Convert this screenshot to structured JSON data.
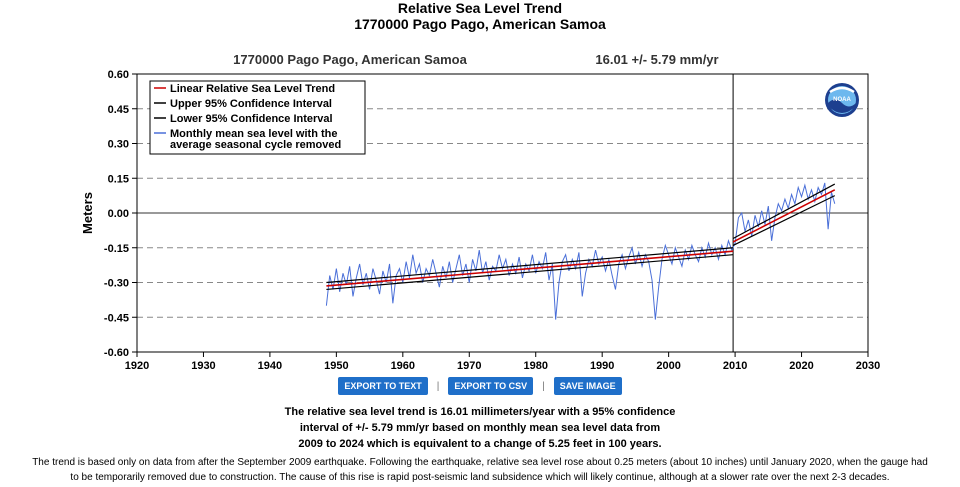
{
  "title": "Relative Sea Level Trend",
  "subtitle": "1770000 Pago Pago, American Samoa",
  "chart_header": {
    "station": "1770000 Pago Pago, American Samoa",
    "trend": "16.01 +/-  5.79 mm/yr"
  },
  "buttons": {
    "export_text": "EXPORT TO TEXT",
    "export_csv": "EXPORT TO CSV",
    "save_image": "SAVE IMAGE"
  },
  "separator": "|",
  "summary": {
    "line1": "The relative sea level trend is 16.01 millimeters/year with a 95% confidence",
    "line2": "interval of +/- 5.79 mm/yr based on monthly mean sea level data from",
    "line3": "2009 to 2024 which is equivalent to a change of 5.25 feet in 100 years."
  },
  "note": {
    "line1": "The trend is based only on data from after the September 2009 earthquake. Following the earthquake, relative sea level rose about 0.25 meters (about 10 inches) until January 2020, when the gauge had",
    "line2": "to be temporarily removed due to construction. The cause of this rise is rapid post-seismic land subsidence which will likely continue, although at a slower rate over the next 2-3 decades."
  },
  "logo_text": "NOAA",
  "colors": {
    "trend": "#cc0000",
    "confidence": "#000000",
    "monthly": "#4a6fd8",
    "button": "#1f6fc9"
  },
  "chart_data": {
    "type": "line",
    "ylabel": "Meters",
    "xlim": [
      1920,
      2030
    ],
    "ylim": [
      -0.6,
      0.6
    ],
    "xticks": [
      "1920",
      "1930",
      "1940",
      "1950",
      "1960",
      "1970",
      "1980",
      "1990",
      "2000",
      "2010",
      "2020",
      "2030"
    ],
    "yticks": [
      "0.60",
      "0.45",
      "0.30",
      "0.15",
      "0.00",
      "-0.15",
      "-0.30",
      "-0.45",
      "-0.60"
    ],
    "dashed_gridlines_y": [
      0.45,
      0.3,
      0.15,
      -0.15,
      -0.3,
      -0.45
    ],
    "reference_line_y": 0.0,
    "vertical_line_x": 2009.7,
    "legend": [
      "Linear Relative Sea Level Trend",
      "Upper 95% Confidence Interval",
      "Lower 95% Confidence Interval",
      "Monthly mean sea level with the",
      "average seasonal cycle removed"
    ],
    "legend_placement": "top-left",
    "series": [
      {
        "name": "Linear Relative Sea Level Trend",
        "segments": [
          {
            "x": [
              1948.5,
              2009.7
            ],
            "y": [
              -0.315,
              -0.165
            ]
          },
          {
            "x": [
              2009.7,
              2025.0
            ],
            "y": [
              -0.125,
              0.1
            ]
          }
        ]
      },
      {
        "name": "Upper 95% Confidence Interval",
        "segments": [
          {
            "x": [
              1948.5,
              2009.7
            ],
            "y": [
              -0.3,
              -0.15
            ]
          },
          {
            "x": [
              2009.7,
              2025.0
            ],
            "y": [
              -0.11,
              0.125
            ]
          }
        ]
      },
      {
        "name": "Lower 95% Confidence Interval",
        "segments": [
          {
            "x": [
              1948.5,
              2009.7
            ],
            "y": [
              -0.33,
              -0.18
            ]
          },
          {
            "x": [
              2009.7,
              2025.0
            ],
            "y": [
              -0.14,
              0.075
            ]
          }
        ]
      },
      {
        "name": "Monthly mean sea level with the average seasonal cycle removed",
        "points": [
          [
            1948.5,
            -0.4
          ],
          [
            1949.0,
            -0.27
          ],
          [
            1949.5,
            -0.33
          ],
          [
            1950.0,
            -0.24
          ],
          [
            1950.5,
            -0.34
          ],
          [
            1951.0,
            -0.26
          ],
          [
            1951.5,
            -0.31
          ],
          [
            1952.0,
            -0.23
          ],
          [
            1952.5,
            -0.36
          ],
          [
            1953.0,
            -0.28
          ],
          [
            1953.5,
            -0.22
          ],
          [
            1954.0,
            -0.31
          ],
          [
            1954.5,
            -0.26
          ],
          [
            1955.0,
            -0.33
          ],
          [
            1955.5,
            -0.24
          ],
          [
            1956.0,
            -0.29
          ],
          [
            1956.5,
            -0.35
          ],
          [
            1957.0,
            -0.25
          ],
          [
            1957.5,
            -0.3
          ],
          [
            1958.0,
            -0.22
          ],
          [
            1958.5,
            -0.39
          ],
          [
            1959.0,
            -0.27
          ],
          [
            1959.5,
            -0.24
          ],
          [
            1960.0,
            -0.3
          ],
          [
            1960.5,
            -0.21
          ],
          [
            1961.0,
            -0.28
          ],
          [
            1961.5,
            -0.18
          ],
          [
            1962.0,
            -0.26
          ],
          [
            1962.5,
            -0.22
          ],
          [
            1963.0,
            -0.3
          ],
          [
            1963.5,
            -0.24
          ],
          [
            1964.0,
            -0.27
          ],
          [
            1964.5,
            -0.2
          ],
          [
            1965.0,
            -0.26
          ],
          [
            1965.5,
            -0.32
          ],
          [
            1966.0,
            -0.23
          ],
          [
            1966.5,
            -0.28
          ],
          [
            1967.0,
            -0.21
          ],
          [
            1967.5,
            -0.3
          ],
          [
            1968.0,
            -0.24
          ],
          [
            1968.5,
            -0.18
          ],
          [
            1969.0,
            -0.27
          ],
          [
            1969.5,
            -0.22
          ],
          [
            1970.0,
            -0.3
          ],
          [
            1970.5,
            -0.2
          ],
          [
            1971.0,
            -0.25
          ],
          [
            1971.5,
            -0.16
          ],
          [
            1972.0,
            -0.26
          ],
          [
            1972.5,
            -0.21
          ],
          [
            1973.0,
            -0.29
          ],
          [
            1973.5,
            -0.23
          ],
          [
            1974.0,
            -0.25
          ],
          [
            1974.5,
            -0.18
          ],
          [
            1975.0,
            -0.24
          ],
          [
            1975.5,
            -0.2
          ],
          [
            1976.0,
            -0.27
          ],
          [
            1976.5,
            -0.22
          ],
          [
            1977.0,
            -0.26
          ],
          [
            1977.5,
            -0.19
          ],
          [
            1978.0,
            -0.28
          ],
          [
            1978.5,
            -0.22
          ],
          [
            1979.0,
            -0.25
          ],
          [
            1979.5,
            -0.18
          ],
          [
            1980.0,
            -0.26
          ],
          [
            1980.5,
            -0.21
          ],
          [
            1981.0,
            -0.24
          ],
          [
            1981.5,
            -0.17
          ],
          [
            1982.0,
            -0.29
          ],
          [
            1982.5,
            -0.22
          ],
          [
            1983.0,
            -0.46
          ],
          [
            1983.5,
            -0.3
          ],
          [
            1984.0,
            -0.21
          ],
          [
            1984.5,
            -0.18
          ],
          [
            1985.0,
            -0.25
          ],
          [
            1985.5,
            -0.2
          ],
          [
            1986.0,
            -0.24
          ],
          [
            1986.5,
            -0.17
          ],
          [
            1987.0,
            -0.36
          ],
          [
            1987.5,
            -0.26
          ],
          [
            1988.0,
            -0.2
          ],
          [
            1988.5,
            -0.23
          ],
          [
            1989.0,
            -0.16
          ],
          [
            1989.5,
            -0.22
          ],
          [
            1990.0,
            -0.19
          ],
          [
            1990.5,
            -0.25
          ],
          [
            1991.0,
            -0.2
          ],
          [
            1991.5,
            -0.27
          ],
          [
            1992.0,
            -0.33
          ],
          [
            1992.5,
            -0.22
          ],
          [
            1993.0,
            -0.18
          ],
          [
            1993.5,
            -0.24
          ],
          [
            1994.0,
            -0.19
          ],
          [
            1994.5,
            -0.15
          ],
          [
            1995.0,
            -0.22
          ],
          [
            1995.5,
            -0.17
          ],
          [
            1996.0,
            -0.23
          ],
          [
            1996.5,
            -0.18
          ],
          [
            1997.0,
            -0.21
          ],
          [
            1997.5,
            -0.29
          ],
          [
            1998.0,
            -0.46
          ],
          [
            1998.5,
            -0.32
          ],
          [
            1999.0,
            -0.2
          ],
          [
            1999.5,
            -0.14
          ],
          [
            2000.0,
            -0.18
          ],
          [
            2000.5,
            -0.22
          ],
          [
            2001.0,
            -0.15
          ],
          [
            2001.5,
            -0.19
          ],
          [
            2002.0,
            -0.23
          ],
          [
            2002.5,
            -0.16
          ],
          [
            2003.0,
            -0.2
          ],
          [
            2003.5,
            -0.14
          ],
          [
            2004.0,
            -0.18
          ],
          [
            2004.5,
            -0.21
          ],
          [
            2005.0,
            -0.15
          ],
          [
            2005.5,
            -0.19
          ],
          [
            2006.0,
            -0.13
          ],
          [
            2006.5,
            -0.18
          ],
          [
            2007.0,
            -0.15
          ],
          [
            2007.5,
            -0.2
          ],
          [
            2008.0,
            -0.14
          ],
          [
            2008.5,
            -0.18
          ],
          [
            2009.0,
            -0.12
          ],
          [
            2009.5,
            -0.16
          ],
          [
            2010.0,
            -0.13
          ],
          [
            2010.5,
            -0.02
          ],
          [
            2011.0,
            0.0
          ],
          [
            2011.5,
            -0.08
          ],
          [
            2012.0,
            -0.03
          ],
          [
            2012.5,
            -0.1
          ],
          [
            2013.0,
            -0.01
          ],
          [
            2013.5,
            -0.06
          ],
          [
            2014.0,
            0.01
          ],
          [
            2014.5,
            -0.05
          ],
          [
            2015.0,
            0.03
          ],
          [
            2015.5,
            -0.12
          ],
          [
            2016.0,
            -0.02
          ],
          [
            2016.5,
            0.04
          ],
          [
            2017.0,
            0.01
          ],
          [
            2017.5,
            0.06
          ],
          [
            2018.0,
            0.02
          ],
          [
            2018.5,
            0.08
          ],
          [
            2019.0,
            0.04
          ],
          [
            2019.5,
            0.11
          ],
          [
            2020.0,
            0.07
          ],
          [
            2020.5,
            0.12
          ],
          [
            2021.0,
            0.06
          ],
          [
            2021.5,
            0.1
          ],
          [
            2022.0,
            0.05
          ],
          [
            2022.5,
            0.11
          ],
          [
            2023.0,
            0.08
          ],
          [
            2023.5,
            0.13
          ],
          [
            2024.0,
            -0.07
          ],
          [
            2024.5,
            0.09
          ],
          [
            2025.0,
            0.04
          ]
        ]
      }
    ]
  }
}
